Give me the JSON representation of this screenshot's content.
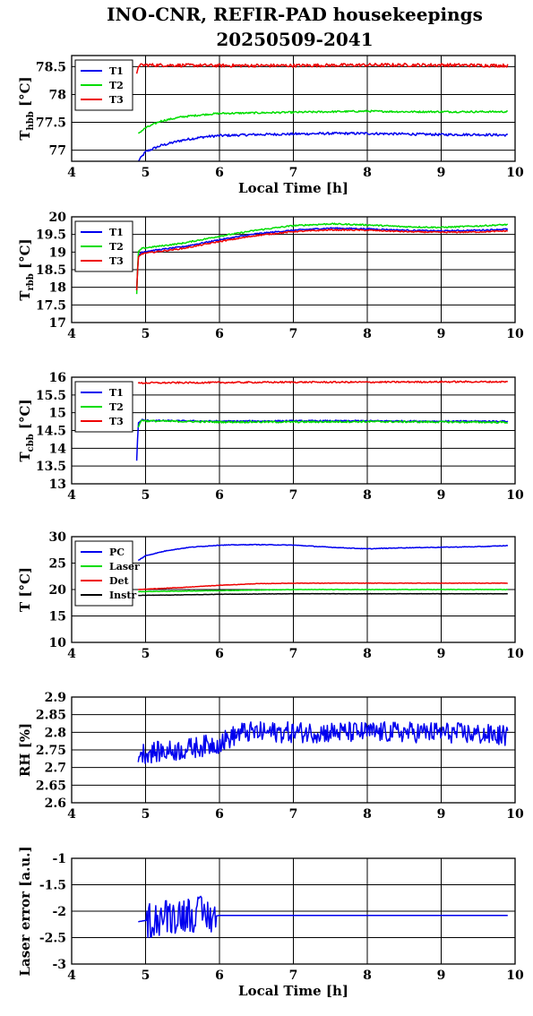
{
  "title_line1": "INO-CNR, REFIR-PAD housekeepings",
  "title_line2": "20250509-2041",
  "chart_data": [
    {
      "type": "line",
      "ylabel_main": "T",
      "ylabel_sub": "hbb",
      "ylabel_unit": " [°C]",
      "xlabel": "Local Time [h]",
      "xlim": [
        4,
        10
      ],
      "ylim": [
        76.8,
        78.7
      ],
      "yticks": [
        77,
        77.5,
        78,
        78.5
      ],
      "ytick_labels": [
        "77",
        "77.5",
        "78",
        "78.5"
      ],
      "xticks": [
        4,
        5,
        6,
        7,
        8,
        9,
        10
      ],
      "xtick_labels": [
        "4",
        "5",
        "6",
        "7",
        "8",
        "9",
        "10"
      ],
      "legend": "top-left",
      "series": [
        {
          "name": "T1",
          "color": "#0000ee",
          "x": [
            4.9,
            5.0,
            5.2,
            5.5,
            5.8,
            6.0,
            6.5,
            7.0,
            7.5,
            8.0,
            8.5,
            9.0,
            9.5,
            9.9
          ],
          "y": [
            76.8,
            76.97,
            77.08,
            77.18,
            77.24,
            77.26,
            77.28,
            77.29,
            77.3,
            77.3,
            77.29,
            77.28,
            77.28,
            77.27
          ],
          "noise": 0.022
        },
        {
          "name": "T2",
          "color": "#00dd00",
          "x": [
            4.9,
            5.0,
            5.2,
            5.5,
            5.8,
            6.0,
            6.5,
            7.0,
            7.5,
            8.0,
            8.5,
            9.0,
            9.5,
            9.9
          ],
          "y": [
            77.3,
            77.4,
            77.52,
            77.6,
            77.64,
            77.66,
            77.67,
            77.68,
            77.69,
            77.7,
            77.69,
            77.69,
            77.69,
            77.69
          ],
          "noise": 0.016
        },
        {
          "name": "T3",
          "color": "#ee0000",
          "x": [
            4.88,
            4.9,
            5.0,
            6.0,
            7.0,
            8.0,
            9.0,
            9.9
          ],
          "y": [
            78.35,
            78.52,
            78.53,
            78.52,
            78.52,
            78.53,
            78.53,
            78.52
          ],
          "noise": 0.03
        }
      ]
    },
    {
      "type": "line",
      "ylabel_main": "T",
      "ylabel_sub": "rbb",
      "ylabel_unit": " [°C]",
      "xlabel": "",
      "xlim": [
        4,
        10
      ],
      "ylim": [
        17,
        20
      ],
      "yticks": [
        17,
        17.5,
        18,
        18.5,
        19,
        19.5,
        20
      ],
      "ytick_labels": [
        "17",
        "17.5",
        "18",
        "18.5",
        "19",
        "19.5",
        "20"
      ],
      "xticks": [
        4,
        5,
        6,
        7,
        8,
        9,
        10
      ],
      "xtick_labels": [
        "4",
        "5",
        "6",
        "7",
        "8",
        "9",
        "10"
      ],
      "legend": "top-left",
      "series": [
        {
          "name": "T1",
          "color": "#0000ee",
          "x": [
            4.88,
            4.9,
            4.95,
            5.0,
            5.5,
            6.0,
            6.5,
            7.0,
            7.5,
            8.0,
            8.5,
            9.0,
            9.5,
            9.9
          ],
          "y": [
            17.9,
            18.9,
            19.0,
            19.02,
            19.15,
            19.35,
            19.52,
            19.62,
            19.68,
            19.66,
            19.62,
            19.6,
            19.62,
            19.65
          ],
          "noise": 0.018
        },
        {
          "name": "T2",
          "color": "#00dd00",
          "x": [
            4.88,
            4.9,
            4.95,
            5.0,
            5.5,
            6.0,
            6.5,
            7.0,
            7.5,
            8.0,
            8.5,
            9.0,
            9.5,
            9.9
          ],
          "y": [
            17.8,
            19.0,
            19.1,
            19.12,
            19.25,
            19.45,
            19.62,
            19.75,
            19.8,
            19.77,
            19.72,
            19.7,
            19.74,
            19.78
          ],
          "noise": 0.02
        },
        {
          "name": "T3",
          "color": "#ee0000",
          "x": [
            4.88,
            4.9,
            4.95,
            5.0,
            5.5,
            6.0,
            6.5,
            7.0,
            7.5,
            8.0,
            8.5,
            9.0,
            9.5,
            9.9
          ],
          "y": [
            17.9,
            18.85,
            18.95,
            18.97,
            19.1,
            19.3,
            19.47,
            19.58,
            19.63,
            19.62,
            19.58,
            19.56,
            19.57,
            19.6
          ],
          "noise": 0.018
        }
      ]
    },
    {
      "type": "line",
      "ylabel_main": "T",
      "ylabel_sub": "cbb",
      "ylabel_unit": " [°C]",
      "xlabel": "",
      "xlim": [
        4,
        10
      ],
      "ylim": [
        13,
        16
      ],
      "yticks": [
        13,
        13.5,
        14,
        14.5,
        15,
        15.5,
        16
      ],
      "ytick_labels": [
        "13",
        "13.5",
        "14",
        "14.5",
        "15",
        "15.5",
        "16"
      ],
      "xticks": [
        4,
        5,
        6,
        7,
        8,
        9,
        10
      ],
      "xtick_labels": [
        "4",
        "5",
        "6",
        "7",
        "8",
        "9",
        "10"
      ],
      "legend": "top-left",
      "series": [
        {
          "name": "T1",
          "color": "#0000ee",
          "x": [
            4.88,
            4.9,
            4.95,
            5.0,
            6.0,
            7.0,
            8.0,
            9.0,
            9.9
          ],
          "y": [
            13.65,
            14.7,
            14.8,
            14.78,
            14.76,
            14.77,
            14.77,
            14.76,
            14.76
          ],
          "noise": 0.02
        },
        {
          "name": "T2",
          "color": "#00dd00",
          "x": [
            4.9,
            4.95,
            5.0,
            6.0,
            7.0,
            8.0,
            9.0,
            9.9
          ],
          "y": [
            14.6,
            14.8,
            14.77,
            14.74,
            14.74,
            14.75,
            14.74,
            14.73
          ],
          "noise": 0.025
        },
        {
          "name": "T3",
          "color": "#ee0000",
          "x": [
            4.9,
            5.0,
            6.0,
            7.0,
            8.0,
            9.0,
            9.9
          ],
          "y": [
            15.83,
            15.84,
            15.85,
            15.86,
            15.86,
            15.87,
            15.87
          ],
          "noise": 0.022
        }
      ]
    },
    {
      "type": "line",
      "ylabel_main": "T [°C]",
      "ylabel_sub": "",
      "ylabel_unit": "",
      "xlabel": "",
      "xlim": [
        4,
        10
      ],
      "ylim": [
        10,
        30
      ],
      "yticks": [
        10,
        15,
        20,
        25,
        30
      ],
      "ytick_labels": [
        "10",
        "15",
        "20",
        "25",
        "30"
      ],
      "xticks": [
        4,
        5,
        6,
        7,
        8,
        9,
        10
      ],
      "xtick_labels": [
        "4",
        "5",
        "6",
        "7",
        "8",
        "9",
        "10"
      ],
      "legend": "top-left",
      "series": [
        {
          "name": "PC",
          "color": "#0000ee",
          "x": [
            4.9,
            5.0,
            5.3,
            5.6,
            6.0,
            6.5,
            7.0,
            7.5,
            8.0,
            8.5,
            9.0,
            9.5,
            9.9
          ],
          "y": [
            25.5,
            26.4,
            27.4,
            28.0,
            28.4,
            28.5,
            28.4,
            28.0,
            27.7,
            27.9,
            28.0,
            28.1,
            28.3
          ],
          "noise": 0.06
        },
        {
          "name": "Laser",
          "color": "#00dd00",
          "x": [
            4.9,
            5.5,
            6.0,
            6.5,
            7.0,
            8.0,
            9.0,
            9.9
          ],
          "y": [
            19.6,
            19.7,
            19.8,
            19.9,
            20.0,
            20.0,
            20.0,
            20.0
          ],
          "noise": 0.04
        },
        {
          "name": "Det",
          "color": "#ee0000",
          "x": [
            4.9,
            5.5,
            6.0,
            6.5,
            7.0,
            8.0,
            9.0,
            9.9
          ],
          "y": [
            20.0,
            20.4,
            20.8,
            21.1,
            21.2,
            21.2,
            21.2,
            21.2
          ],
          "noise": 0.04
        },
        {
          "name": "Instr",
          "color": "#000000",
          "x": [
            4.9,
            5.5,
            6.0,
            7.0,
            8.0,
            9.0,
            9.9
          ],
          "y": [
            18.9,
            19.0,
            19.1,
            19.2,
            19.2,
            19.2,
            19.2
          ],
          "noise": 0.03
        }
      ]
    },
    {
      "type": "line",
      "ylabel_main": "RH [%]",
      "ylabel_sub": "",
      "ylabel_unit": "",
      "xlabel": "",
      "xlim": [
        4,
        10
      ],
      "ylim": [
        2.6,
        2.9
      ],
      "yticks": [
        2.6,
        2.65,
        2.7,
        2.75,
        2.8,
        2.85,
        2.9
      ],
      "ytick_labels": [
        "2.6",
        "2.65",
        "2.7",
        "2.75",
        "2.8",
        "2.85",
        "2.9"
      ],
      "xticks": [
        4,
        5,
        6,
        7,
        8,
        9,
        10
      ],
      "xtick_labels": [
        "4",
        "5",
        "6",
        "7",
        "8",
        "9",
        "10"
      ],
      "legend": "none",
      "series": [
        {
          "name": "",
          "color": "#0000ee",
          "x": [
            4.9,
            5.5,
            6.0,
            6.3,
            7.0,
            8.0,
            9.0,
            9.9
          ],
          "y": [
            2.74,
            2.75,
            2.77,
            2.8,
            2.8,
            2.8,
            2.8,
            2.79
          ],
          "noise": 0.03
        }
      ]
    },
    {
      "type": "line",
      "ylabel_main": "Laser error [a.u.]",
      "ylabel_sub": "",
      "ylabel_unit": "",
      "xlabel": "Local Time [h]",
      "xlim": [
        4,
        10
      ],
      "ylim": [
        -3,
        -1
      ],
      "yticks": [
        -3,
        -2.5,
        -2,
        -1.5,
        -1
      ],
      "ytick_labels": [
        "-3",
        "-2.5",
        "-2",
        "-1.5",
        "-1"
      ],
      "xticks": [
        4,
        5,
        6,
        7,
        8,
        9,
        10
      ],
      "xtick_labels": [
        "4",
        "5",
        "6",
        "7",
        "8",
        "9",
        "10"
      ],
      "legend": "none",
      "series": [
        {
          "name": "",
          "color": "#0000ee",
          "x": [
            4.9,
            5.1,
            5.3,
            5.5,
            5.7,
            5.9,
            6.0,
            7.0,
            8.0,
            9.0,
            9.9
          ],
          "y": [
            -2.2,
            -2.15,
            -2.1,
            -2.05,
            -2.05,
            -2.1,
            -2.08,
            -2.08,
            -2.08,
            -2.08,
            -2.08
          ],
          "noise": 0.0,
          "burst": [
            5.0,
            5.95,
            0.35
          ]
        }
      ]
    }
  ]
}
